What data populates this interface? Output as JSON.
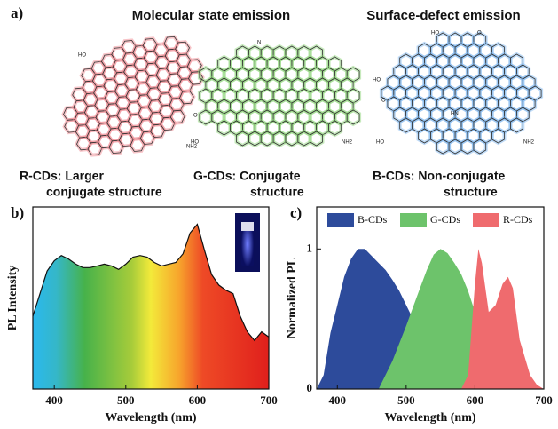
{
  "panel_a": {
    "label": "a)",
    "heading_left": "Molecular state emission",
    "heading_right": "Surface-defect emission",
    "r_caption_1": "R-CDs:  Larger",
    "r_caption_2": "conjugate structure",
    "g_caption_1": "G-CDs:  Conjugate",
    "g_caption_2": "structure",
    "b_caption_1": "B-CDs:  Non-conjugate",
    "b_caption_2": "structure",
    "atoms": {
      "ho": "HO",
      "o": "O",
      "nh2": "NH2",
      "hn": "HN",
      "n": "N"
    }
  },
  "chart_data": [
    {
      "type": "area",
      "panel_label": "b)",
      "xlabel": "Wavelength (nm)",
      "ylabel": "PL Intensity",
      "x": [
        370,
        380,
        390,
        400,
        410,
        420,
        430,
        440,
        450,
        460,
        470,
        480,
        490,
        500,
        510,
        520,
        530,
        540,
        550,
        560,
        570,
        580,
        590,
        600,
        610,
        620,
        630,
        640,
        650,
        660,
        670,
        680,
        690,
        700
      ],
      "values": [
        0.42,
        0.55,
        0.68,
        0.74,
        0.77,
        0.75,
        0.72,
        0.7,
        0.7,
        0.71,
        0.72,
        0.71,
        0.69,
        0.72,
        0.76,
        0.77,
        0.76,
        0.73,
        0.71,
        0.72,
        0.73,
        0.78,
        0.9,
        0.95,
        0.8,
        0.66,
        0.6,
        0.57,
        0.55,
        0.42,
        0.33,
        0.28,
        0.33,
        0.3
      ],
      "xlim": [
        370,
        700
      ],
      "ylim": [
        0,
        1.05
      ],
      "xticks": [
        400,
        500,
        600,
        700
      ],
      "fill": "rainbow",
      "color": "#111111"
    },
    {
      "type": "area",
      "panel_label": "c)",
      "xlabel": "Wavelength (nm)",
      "ylabel": "Normalized PL",
      "xlim": [
        370,
        700
      ],
      "ylim": [
        0,
        1.3
      ],
      "xticks": [
        400,
        500,
        600,
        700
      ],
      "yticks": [
        0,
        1
      ],
      "series": [
        {
          "name": "B-CDs",
          "color": "#2d4b9b",
          "x": [
            370,
            380,
            390,
            400,
            410,
            420,
            430,
            440,
            450,
            460,
            470,
            480,
            490,
            500,
            510,
            520,
            530,
            540,
            550,
            560
          ],
          "values": [
            0,
            0.1,
            0.4,
            0.6,
            0.8,
            0.93,
            1.0,
            1.0,
            0.95,
            0.9,
            0.85,
            0.78,
            0.7,
            0.6,
            0.5,
            0.4,
            0.25,
            0.12,
            0.05,
            0
          ]
        },
        {
          "name": "G-CDs",
          "color": "#6dc36b",
          "x": [
            460,
            480,
            500,
            520,
            530,
            540,
            550,
            560,
            570,
            580,
            590,
            600,
            610,
            620,
            630,
            640,
            650
          ],
          "values": [
            0,
            0.2,
            0.45,
            0.72,
            0.85,
            0.96,
            1.0,
            0.97,
            0.9,
            0.82,
            0.7,
            0.55,
            0.35,
            0.2,
            0.1,
            0.04,
            0
          ]
        },
        {
          "name": "R-CDs",
          "color": "#ef6b6e",
          "x": [
            580,
            590,
            600,
            605,
            610,
            620,
            630,
            640,
            648,
            655,
            665,
            680,
            690,
            700
          ],
          "values": [
            0,
            0.1,
            0.75,
            1.0,
            0.9,
            0.55,
            0.6,
            0.75,
            0.8,
            0.72,
            0.35,
            0.1,
            0.03,
            0
          ]
        }
      ]
    }
  ]
}
